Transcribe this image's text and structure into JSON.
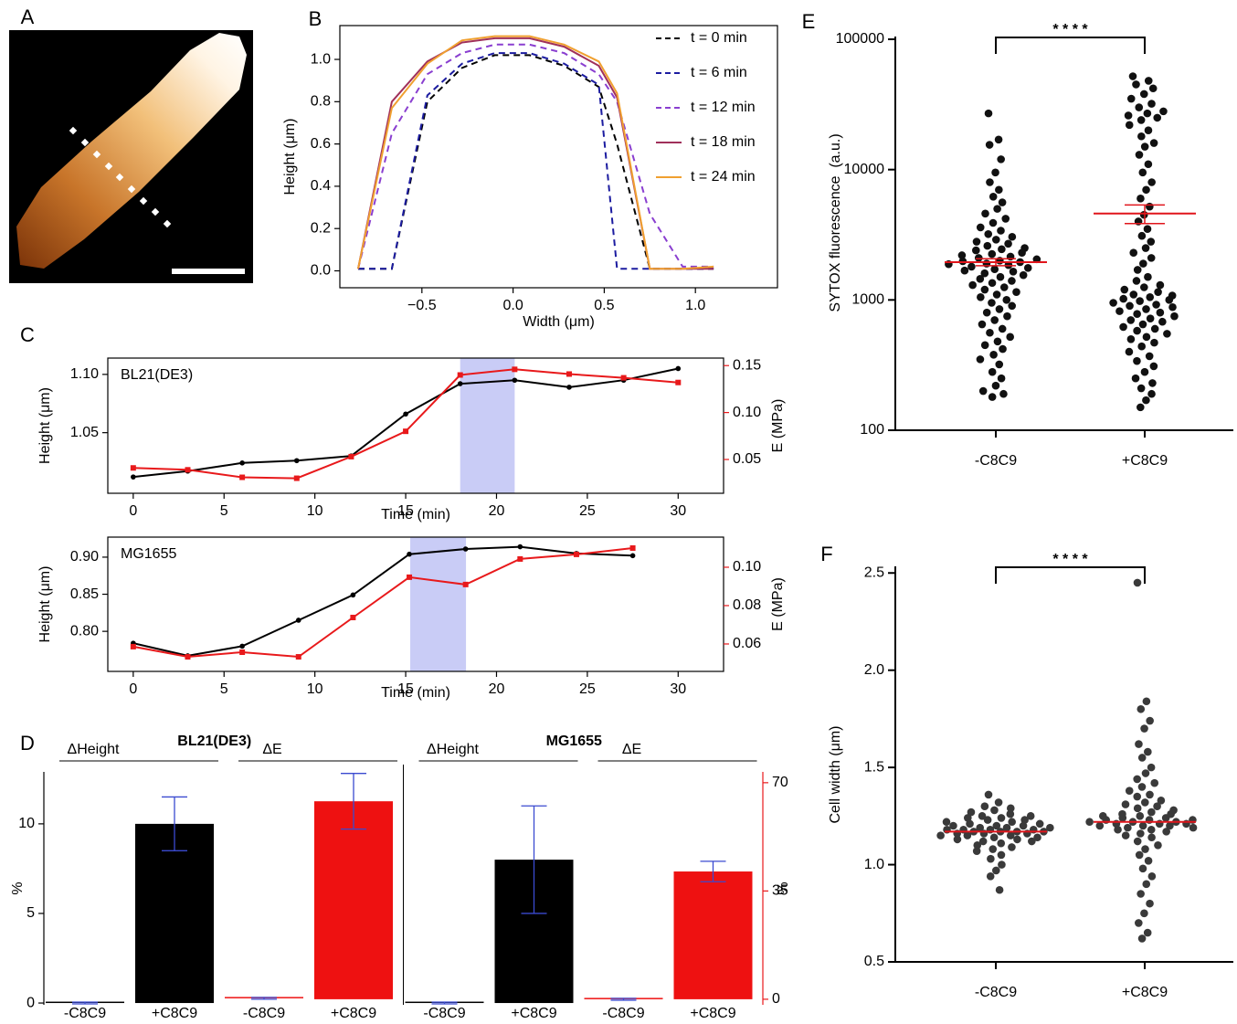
{
  "chart_data": [
    {
      "type": "image",
      "panel": "A"
    },
    {
      "type": "line",
      "panel": "B",
      "x_label": "Width (μm)",
      "y_label": "Height (μm)",
      "legend": "upper right",
      "x": [
        -0.85,
        -0.665,
        -0.47,
        -0.28,
        -0.1,
        0.09,
        0.28,
        0.47,
        0.57,
        0.75,
        0.93,
        1.1
      ],
      "series": [
        {
          "name": "t = 0 min",
          "color": "#000000",
          "dash": true,
          "values": [
            0.01,
            0.01,
            0.8,
            0.96,
            1.02,
            1.02,
            0.97,
            0.87,
            0.6,
            0.01,
            0.01,
            0.01
          ]
        },
        {
          "name": "t = 6 min",
          "color": "#1c1ca0",
          "dash": true,
          "values": [
            0.01,
            0.01,
            0.83,
            0.98,
            1.03,
            1.03,
            0.98,
            0.88,
            0.01,
            0.01,
            0.01,
            0.01
          ]
        },
        {
          "name": "t = 12 min",
          "color": "#8a3fd0",
          "dash": true,
          "values": [
            0.01,
            0.65,
            0.93,
            1.03,
            1.07,
            1.07,
            1.03,
            0.93,
            0.8,
            0.27,
            0.02,
            0.02
          ]
        },
        {
          "name": "t = 18 min",
          "color": "#a0305a",
          "dash": false,
          "values": [
            0.01,
            0.8,
            0.99,
            1.08,
            1.1,
            1.1,
            1.06,
            0.97,
            0.82,
            0.01,
            0.01,
            0.01
          ]
        },
        {
          "name": "t = 24 min",
          "color": "#f0a030",
          "dash": false,
          "values": [
            0.01,
            0.77,
            0.98,
            1.09,
            1.11,
            1.11,
            1.07,
            0.99,
            0.84,
            0.01,
            0.01,
            0.02
          ]
        }
      ],
      "xlim": [
        -0.95,
        1.45
      ],
      "ylim": [
        -0.08,
        1.16
      ],
      "xticks": [
        {
          "value": -0.5,
          "label": "−0.5"
        },
        {
          "value": 0,
          "label": "0.0"
        },
        0.5,
        {
          "value": 1,
          "label": "1.0"
        }
      ],
      "yticks": [
        {
          "value": 0,
          "label": "0.0"
        },
        0.2,
        0.4,
        0.6,
        0.8,
        {
          "value": 1,
          "label": "1.0"
        }
      ]
    },
    {
      "type": "dual_line",
      "panel": "C",
      "annotation": "BL21(DE3)",
      "x_label": "Time (min)",
      "y_label": "Height (μm)",
      "y2_label": "E (MPa)",
      "x": [
        0,
        3,
        6,
        9,
        12,
        15,
        18,
        21,
        24,
        27,
        30
      ],
      "highlight": [
        18,
        21
      ],
      "highlight_color": "#c9ccf6",
      "series": [
        {
          "color": "#000000",
          "marker": "circle",
          "axis": "y",
          "values": [
            1.012,
            1.017,
            1.024,
            1.026,
            1.03,
            1.066,
            1.092,
            1.095,
            1.089,
            1.095,
            1.105
          ]
        },
        {
          "color": "#e8191b",
          "marker": "square",
          "axis": "y2",
          "values": [
            0.041,
            0.039,
            0.031,
            0.03,
            0.053,
            0.08,
            0.14,
            0.146,
            0.141,
            0.137,
            0.132
          ]
        }
      ],
      "xlim": [
        -1.4,
        32.5
      ],
      "ylim": [
        0.998,
        1.114
      ],
      "y2lim": [
        0.014,
        0.158
      ],
      "xticks": [
        0,
        5,
        10,
        15,
        20,
        25,
        30
      ],
      "yticks": [
        1.05,
        {
          "value": 1.1,
          "label": "1.10"
        }
      ],
      "y2ticks": [
        0.05,
        {
          "value": 0.1,
          "label": "0.10"
        },
        0.15
      ]
    },
    {
      "type": "dual_line",
      "annotation": "MG1655",
      "x_label": "Time (min)",
      "y_label": "Height (μm)",
      "y2_label": "E (MPa)",
      "x": [
        0,
        3,
        6,
        9.1,
        12.1,
        15.2,
        18.3,
        21.3,
        24.4,
        27.5
      ],
      "highlight": [
        15.25,
        18.32
      ],
      "highlight_color": "#c9ccf6",
      "series": [
        {
          "color": "#000000",
          "marker": "circle",
          "axis": "y",
          "values": [
            0.784,
            0.767,
            0.78,
            0.815,
            0.849,
            0.904,
            0.911,
            0.914,
            0.905,
            0.902
          ]
        },
        {
          "color": "#e8191b",
          "marker": "square",
          "axis": "y2",
          "values": [
            0.0586,
            0.0533,
            0.0557,
            0.0533,
            0.0738,
            0.0948,
            0.091,
            0.1043,
            0.1067,
            0.11
          ]
        }
      ],
      "xlim": [
        -1.4,
        32.5
      ],
      "ylim": [
        0.746,
        0.927
      ],
      "y2lim": [
        0.0457,
        0.1157
      ],
      "xticks": [
        0,
        5,
        10,
        15,
        20,
        25,
        30
      ],
      "yticks": [
        {
          "value": 0.8,
          "label": "0.80"
        },
        0.85,
        {
          "value": 0.9,
          "label": "0.90"
        }
      ],
      "y2ticks": [
        0.06,
        0.08,
        {
          "value": 0.1,
          "label": "0.10"
        }
      ]
    },
    {
      "type": "grouped_bar",
      "panel": "D",
      "y_label": "%",
      "y2_label": "%",
      "y2_color": "#e8191b",
      "error_color": "#3a4ad0",
      "ylim": [
        -0.1,
        12.9
      ],
      "yticks": [
        0,
        5,
        10
      ],
      "y2lim": [
        -1.8,
        73.5
      ],
      "y2ticks": [
        0,
        35,
        70
      ],
      "groups": [
        {
          "title": "BL21(DE3)",
          "sets": [
            {
              "name": "ΔHeight",
              "color": "#000000",
              "axis": "y",
              "categories": [
                "-C8C9",
                "+C8C9"
              ],
              "values": [
                0,
                10
              ],
              "errors": [
                0.05,
                1.5
              ]
            },
            {
              "name": "ΔE",
              "color": "#ee1111",
              "axis": "y2",
              "categories": [
                "-C8C9",
                "+C8C9"
              ],
              "values": [
                0.3,
                64
              ],
              "errors": [
                0.3,
                9
              ]
            }
          ]
        },
        {
          "title": "MG1655",
          "sets": [
            {
              "name": "ΔHeight",
              "color": "#000000",
              "axis": "y",
              "categories": [
                "-C8C9",
                "+C8C9"
              ],
              "values": [
                0,
                8
              ],
              "errors": [
                0.05,
                3
              ]
            },
            {
              "name": "ΔE",
              "color": "#ee1111",
              "axis": "y2",
              "categories": [
                "-C8C9",
                "+C8C9"
              ],
              "values": [
                0,
                41.3
              ],
              "errors": [
                0.3,
                3.3
              ]
            }
          ]
        }
      ]
    },
    {
      "type": "swarm",
      "panel": "E",
      "log": true,
      "y_label": "SYTOX fluorescence",
      "y_unit": "(a.u.)",
      "significance": "* * * *",
      "point_color": "#111111",
      "mean_color": "#e0151b",
      "categories": [
        "-C8C9",
        "+C8C9"
      ],
      "values": [
        [
          27000,
          17000,
          15500,
          12000,
          9500,
          8000,
          7000,
          6200,
          5600,
          5000,
          4600,
          4200,
          3900,
          3600,
          3400,
          3200,
          3050,
          2900,
          2800,
          2700,
          2600,
          2500,
          2450,
          2400,
          2300,
          2250,
          2200,
          2150,
          2100,
          2050,
          2000,
          1980,
          1950,
          1900,
          1880,
          1850,
          1800,
          1760,
          1720,
          1680,
          1650,
          1600,
          1550,
          1500,
          1450,
          1400,
          1350,
          1300,
          1250,
          1200,
          1150,
          1100,
          1050,
          1000,
          950,
          900,
          850,
          800,
          750,
          700,
          650,
          600,
          560,
          520,
          480,
          450,
          420,
          380,
          350,
          320,
          280,
          250,
          220,
          200,
          190,
          180
        ],
        [
          52000,
          48000,
          45000,
          42000,
          38000,
          35000,
          32000,
          30000,
          28000,
          27000,
          26000,
          25000,
          24000,
          22000,
          20000,
          18000,
          16000,
          15000,
          13000,
          11000,
          9500,
          8000,
          7000,
          6000,
          5200,
          4500,
          4000,
          3500,
          3100,
          2800,
          2500,
          2300,
          2100,
          1900,
          1700,
          1500,
          1400,
          1300,
          1250,
          1200,
          1150,
          1100,
          1080,
          1050,
          1020,
          1000,
          980,
          950,
          920,
          900,
          880,
          850,
          820,
          800,
          780,
          750,
          720,
          700,
          680,
          650,
          620,
          600,
          580,
          550,
          520,
          500,
          470,
          440,
          400,
          370,
          340,
          310,
          280,
          250,
          230,
          210,
          190,
          170,
          150
        ]
      ],
      "means": [
        1950,
        4600
      ],
      "errors": [
        120,
        750
      ],
      "ylim": [
        100,
        100000
      ],
      "yticks": [
        100,
        1000,
        10000,
        100000
      ]
    },
    {
      "type": "swarm",
      "panel": "F",
      "log": false,
      "y_label": "Cell width (μm)",
      "significance": "* * * *",
      "point_color": "#3a3a3a",
      "mean_color": "#e0151b",
      "categories": [
        "-C8C9",
        "+C8C9"
      ],
      "values": [
        [
          1.36,
          1.32,
          1.3,
          1.29,
          1.28,
          1.27,
          1.26,
          1.25,
          1.25,
          1.24,
          1.24,
          1.23,
          1.23,
          1.22,
          1.22,
          1.21,
          1.21,
          1.2,
          1.2,
          1.2,
          1.19,
          1.19,
          1.19,
          1.18,
          1.18,
          1.18,
          1.18,
          1.17,
          1.17,
          1.17,
          1.17,
          1.16,
          1.16,
          1.16,
          1.15,
          1.15,
          1.15,
          1.14,
          1.14,
          1.13,
          1.13,
          1.12,
          1.12,
          1.11,
          1.1,
          1.09,
          1.08,
          1.07,
          1.05,
          1.03,
          1.0,
          0.97,
          0.94,
          0.87
        ],
        [
          2.45,
          1.84,
          1.8,
          1.74,
          1.7,
          1.62,
          1.58,
          1.55,
          1.5,
          1.47,
          1.44,
          1.42,
          1.4,
          1.38,
          1.36,
          1.35,
          1.33,
          1.32,
          1.31,
          1.3,
          1.29,
          1.28,
          1.27,
          1.26,
          1.26,
          1.25,
          1.25,
          1.24,
          1.24,
          1.23,
          1.23,
          1.23,
          1.22,
          1.22,
          1.22,
          1.21,
          1.21,
          1.21,
          1.2,
          1.2,
          1.2,
          1.19,
          1.19,
          1.18,
          1.18,
          1.17,
          1.16,
          1.15,
          1.14,
          1.12,
          1.1,
          1.08,
          1.05,
          1.02,
          0.98,
          0.94,
          0.9,
          0.85,
          0.8,
          0.75,
          0.7,
          0.65,
          0.62
        ]
      ],
      "means": [
        1.17,
        1.22
      ],
      "ylim": [
        0.5,
        2.52
      ],
      "yticks": [
        0.5,
        {
          "value": 1,
          "label": "1.0"
        },
        1.5,
        {
          "value": 2,
          "label": "2.0"
        },
        2.5
      ]
    }
  ]
}
